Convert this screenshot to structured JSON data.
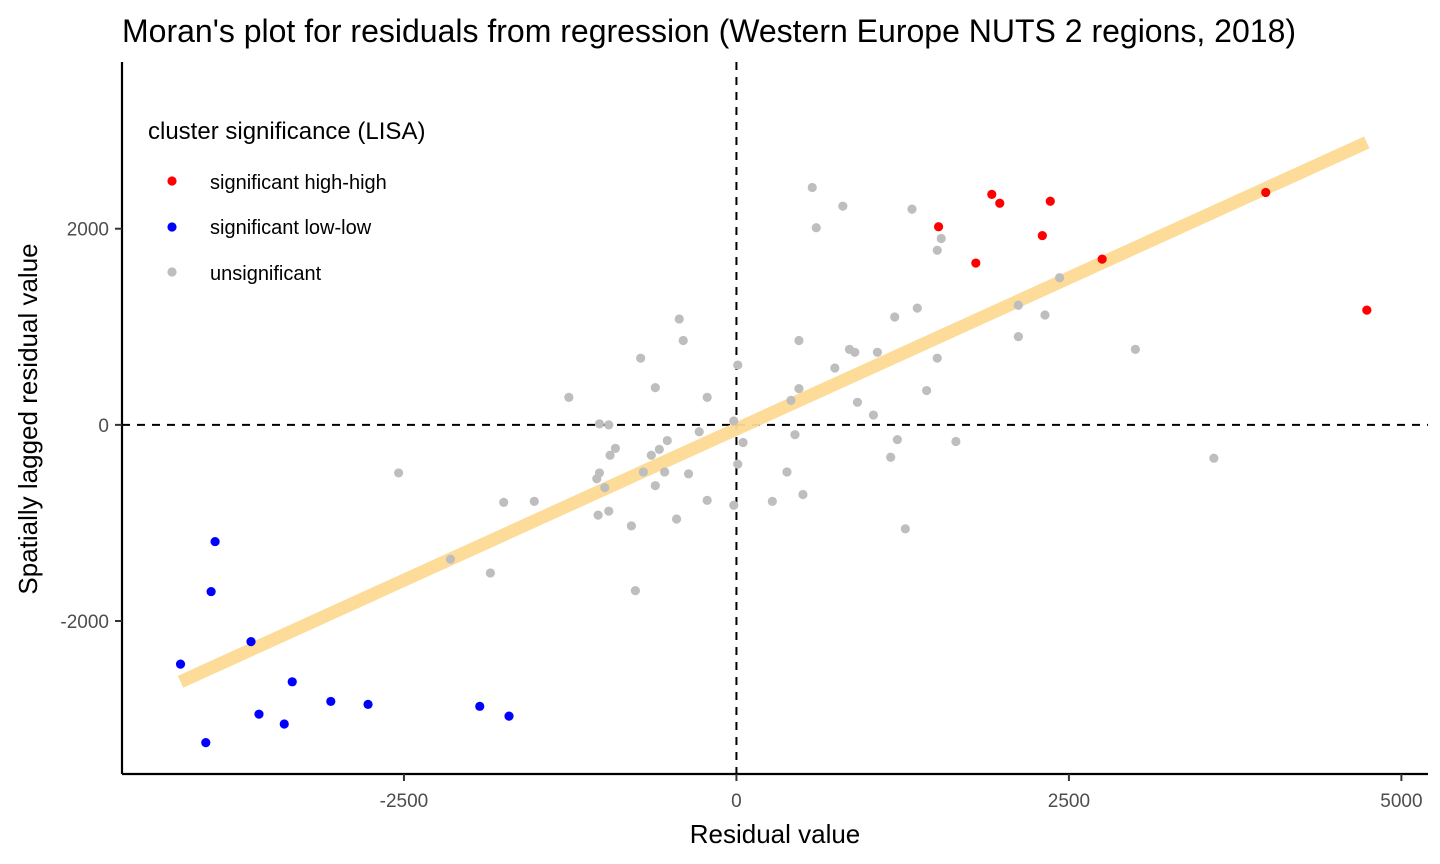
{
  "chart_data": {
    "type": "scatter",
    "title": "Moran's plot for residuals from regression (Western Europe NUTS 2 regions, 2018)",
    "xlabel": "Residual value",
    "ylabel": "Spatially lagged residual value",
    "xlim": [
      -4620,
      5200
    ],
    "ylim": [
      -3560,
      3700
    ],
    "x_ticks": [
      -2500,
      0,
      2500,
      5000
    ],
    "y_ticks": [
      -2000,
      0,
      2000
    ],
    "x_tick_labels": [
      "-2500",
      "0",
      "2500",
      "5000"
    ],
    "y_tick_labels": [
      "-2000",
      "0",
      "2000"
    ],
    "grid": false,
    "reference_lines": {
      "x": 0,
      "y": 0,
      "style": "dashed"
    },
    "legend": {
      "title": "cluster significance (LISA)",
      "position": "top-left",
      "entries": [
        {
          "label": "significant high-high",
          "color": "#ff0000"
        },
        {
          "label": "significant low-low",
          "color": "#0000ff"
        },
        {
          "label": "unsignificant",
          "color": "#bebebe"
        }
      ]
    },
    "fit_line": {
      "x": [
        -4180,
        4740
      ],
      "y": [
        -2620,
        2880
      ],
      "color": "#fddb94"
    },
    "series": [
      {
        "name": "significant high-high",
        "color": "#ff0000",
        "points": [
          [
            1520,
            2020
          ],
          [
            1800,
            1650
          ],
          [
            1920,
            2350
          ],
          [
            1980,
            2260
          ],
          [
            2300,
            1930
          ],
          [
            2360,
            2280
          ],
          [
            2750,
            1690
          ],
          [
            3980,
            2370
          ],
          [
            4740,
            1170
          ]
        ]
      },
      {
        "name": "significant low-low",
        "color": "#0000ff",
        "points": [
          [
            -4180,
            -2440
          ],
          [
            -3990,
            -3240
          ],
          [
            -3950,
            -1700
          ],
          [
            -3920,
            -1190
          ],
          [
            -3650,
            -2210
          ],
          [
            -3590,
            -2950
          ],
          [
            -3400,
            -3050
          ],
          [
            -3340,
            -2620
          ],
          [
            -3050,
            -2820
          ],
          [
            -2770,
            -2850
          ],
          [
            -1930,
            -2870
          ],
          [
            -1710,
            -2970
          ]
        ]
      },
      {
        "name": "unsignificant",
        "color": "#bebebe",
        "points": [
          [
            570,
            2420
          ],
          [
            800,
            2230
          ],
          [
            600,
            2010
          ],
          [
            1320,
            2200
          ],
          [
            1540,
            1900
          ],
          [
            1510,
            1780
          ],
          [
            2430,
            1500
          ],
          [
            2120,
            1220
          ],
          [
            1360,
            1190
          ],
          [
            1190,
            1100
          ],
          [
            2320,
            1120
          ],
          [
            2120,
            900
          ],
          [
            3000,
            770
          ],
          [
            -430,
            1080
          ],
          [
            -400,
            860
          ],
          [
            470,
            860
          ],
          [
            850,
            770
          ],
          [
            890,
            740
          ],
          [
            1060,
            740
          ],
          [
            740,
            580
          ],
          [
            -720,
            680
          ],
          [
            1510,
            680
          ],
          [
            10,
            610
          ],
          [
            -610,
            380
          ],
          [
            470,
            370
          ],
          [
            1430,
            350
          ],
          [
            -1260,
            280
          ],
          [
            -220,
            280
          ],
          [
            410,
            250
          ],
          [
            910,
            230
          ],
          [
            1030,
            100
          ],
          [
            -1030,
            10
          ],
          [
            -960,
            0
          ],
          [
            -20,
            40
          ],
          [
            -280,
            -70
          ],
          [
            440,
            -100
          ],
          [
            1210,
            -150
          ],
          [
            -520,
            -160
          ],
          [
            -910,
            -240
          ],
          [
            50,
            -180
          ],
          [
            1650,
            -170
          ],
          [
            -580,
            -250
          ],
          [
            -640,
            -310
          ],
          [
            -950,
            -310
          ],
          [
            1160,
            -330
          ],
          [
            3590,
            -340
          ],
          [
            10,
            -400
          ],
          [
            -1520,
            -780
          ],
          [
            -1850,
            -1510
          ],
          [
            -2150,
            -1370
          ],
          [
            -1030,
            -490
          ],
          [
            -700,
            -480
          ],
          [
            -540,
            -480
          ],
          [
            -360,
            -500
          ],
          [
            -1050,
            -550
          ],
          [
            -220,
            -770
          ],
          [
            -990,
            -640
          ],
          [
            -610,
            -620
          ],
          [
            380,
            -480
          ],
          [
            -2540,
            -490
          ],
          [
            -1750,
            -790
          ],
          [
            -960,
            -880
          ],
          [
            -1040,
            -920
          ],
          [
            -20,
            -820
          ],
          [
            270,
            -780
          ],
          [
            500,
            -710
          ],
          [
            -790,
            -1030
          ],
          [
            -450,
            -960
          ],
          [
            1270,
            -1060
          ],
          [
            -760,
            -1690
          ]
        ]
      }
    ]
  }
}
